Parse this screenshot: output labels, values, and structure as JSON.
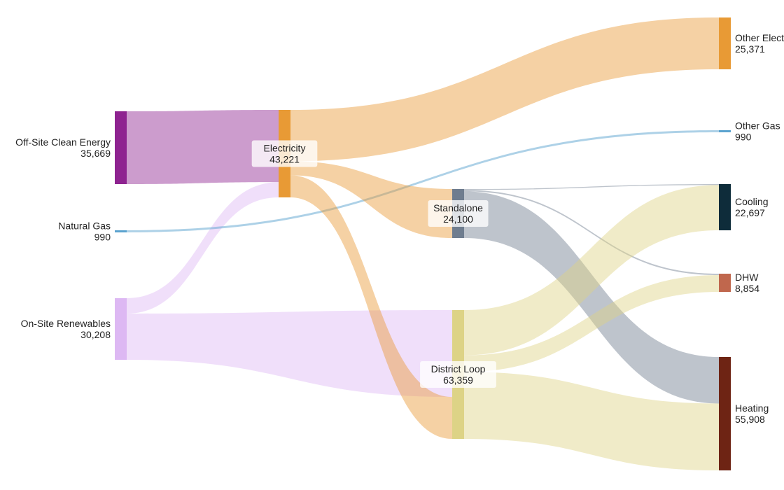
{
  "chart_data": {
    "type": "sankey",
    "title": "",
    "nodes": [
      {
        "id": "offsite",
        "label": "Off-Site Clean Energy",
        "value": "35,669",
        "color": "#8e2390"
      },
      {
        "id": "gas",
        "label": "Natural Gas",
        "value": "990",
        "color": "#5ba3cf"
      },
      {
        "id": "onsite",
        "label": "On-Site Renewables",
        "value": "30,208",
        "color": "#ddb8f3"
      },
      {
        "id": "electricity",
        "label": "Electricity",
        "value": "43,221",
        "color": "#e89a35"
      },
      {
        "id": "standalone",
        "label": "Standalone",
        "value": "24,100",
        "color": "#6f7d8f"
      },
      {
        "id": "district",
        "label": "District Loop",
        "value": "63,359",
        "color": "#ddd386"
      },
      {
        "id": "otherelec",
        "label": "Other Electricity",
        "value": "25,371",
        "color": "#e89a35"
      },
      {
        "id": "othergas",
        "label": "Other Gas",
        "value": "990",
        "color": "#5ba3cf"
      },
      {
        "id": "cooling",
        "label": "Cooling",
        "value": "22,697",
        "color": "#0e2c3a"
      },
      {
        "id": "dhw",
        "label": "DHW",
        "value": "8,854",
        "color": "#c0674d"
      },
      {
        "id": "heating",
        "label": "Heating",
        "value": "55,908",
        "color": "#6e2414"
      }
    ],
    "links": [
      {
        "source": "offsite",
        "target": "electricity",
        "value": 35669
      },
      {
        "source": "onsite",
        "target": "electricity",
        "value": 7552
      },
      {
        "source": "onsite",
        "target": "district",
        "value": 22656
      },
      {
        "source": "gas",
        "target": "othergas",
        "value": 990
      },
      {
        "source": "electricity",
        "target": "otherelec",
        "value": 25371
      },
      {
        "source": "electricity",
        "target": "standalone",
        "value": 6906
      },
      {
        "source": "electricity",
        "target": "district",
        "value": 10944
      },
      {
        "source": "standalone",
        "target": "cooling",
        "value": 460
      },
      {
        "source": "standalone",
        "target": "dhw",
        "value": 700
      },
      {
        "source": "standalone",
        "target": "heating",
        "value": 22940
      },
      {
        "source": "district",
        "target": "cooling",
        "value": 22237
      },
      {
        "source": "district",
        "target": "dhw",
        "value": 8154
      },
      {
        "source": "district",
        "target": "heating",
        "value": 32968
      }
    ]
  }
}
